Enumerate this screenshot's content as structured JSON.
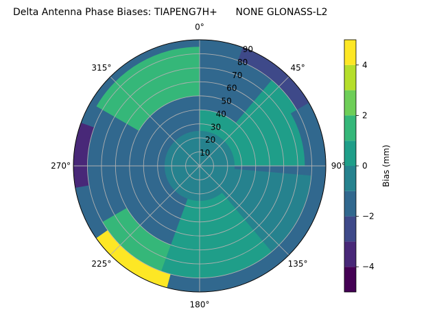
{
  "chart_data": {
    "type": "heatmap",
    "subtype": "polar-filled-contour",
    "title": "Delta Antenna Phase Biases: TIAPENG7H+      NONE GLONASS-L2",
    "azimuth_ticks": [
      {
        "angle": 0,
        "label": "0°"
      },
      {
        "angle": 45,
        "label": "45°"
      },
      {
        "angle": 90,
        "label": "90°"
      },
      {
        "angle": 135,
        "label": "135°"
      },
      {
        "angle": 180,
        "label": "180°"
      },
      {
        "angle": 225,
        "label": "225°"
      },
      {
        "angle": 270,
        "label": "270°"
      },
      {
        "angle": 315,
        "label": "315°"
      }
    ],
    "radial_ticks": [
      "10",
      "20",
      "30",
      "40",
      "50",
      "60",
      "70",
      "80",
      "90"
    ],
    "radial_range": [
      0,
      90
    ],
    "grid": true,
    "colorbar": {
      "label": "Bias (mm)",
      "range": [
        -5,
        5
      ],
      "levels": [
        -5,
        -4,
        -3,
        -2,
        -1,
        0,
        1,
        2,
        3,
        4,
        5
      ],
      "ticks": [
        "−4",
        "−2",
        "0",
        "2",
        "4"
      ],
      "tick_values": [
        -4,
        -2,
        0,
        2,
        4
      ],
      "colors": [
        "#440154",
        "#482878",
        "#3e4989",
        "#31688e",
        "#26828e",
        "#1f9e89",
        "#35b779",
        "#6ece58",
        "#b5de2b",
        "#fde725"
      ]
    },
    "bias_regions": [
      {
        "azimuth_range": [
          0,
          40
        ],
        "elevation_range": [
          0,
          40
        ],
        "bias_mm": [
          0,
          1
        ]
      },
      {
        "azimuth_range": [
          40,
          90
        ],
        "elevation_range": [
          0,
          80
        ],
        "bias_mm": [
          0,
          1
        ]
      },
      {
        "azimuth_range": [
          20,
          60
        ],
        "elevation_range": [
          80,
          90
        ],
        "bias_mm": [
          -3,
          -2
        ]
      },
      {
        "azimuth_range": [
          60,
          100
        ],
        "elevation_range": [
          75,
          90
        ],
        "bias_mm": [
          -2,
          -1
        ]
      },
      {
        "azimuth_range": [
          95,
          140
        ],
        "elevation_range": [
          0,
          80
        ],
        "bias_mm": [
          -1,
          0
        ]
      },
      {
        "azimuth_range": [
          140,
          200
        ],
        "elevation_range": [
          20,
          80
        ],
        "bias_mm": [
          0,
          1
        ]
      },
      {
        "azimuth_range": [
          195,
          235
        ],
        "elevation_range": [
          80,
          90
        ],
        "bias_mm": [
          3,
          5
        ]
      },
      {
        "azimuth_range": [
          200,
          240
        ],
        "elevation_range": [
          60,
          80
        ],
        "bias_mm": [
          1,
          2
        ]
      },
      {
        "azimuth_range": [
          240,
          300
        ],
        "elevation_range": [
          60,
          80
        ],
        "bias_mm": [
          -2,
          -1
        ]
      },
      {
        "azimuth_range": [
          260,
          290
        ],
        "elevation_range": [
          80,
          90
        ],
        "bias_mm": [
          -4,
          -3
        ]
      },
      {
        "azimuth_range": [
          300,
          360
        ],
        "elevation_range": [
          50,
          85
        ],
        "bias_mm": [
          1,
          2
        ]
      },
      {
        "azimuth_range": [
          0,
          360
        ],
        "elevation_range": [
          0,
          25
        ],
        "bias_mm": [
          -1,
          0
        ]
      }
    ]
  }
}
